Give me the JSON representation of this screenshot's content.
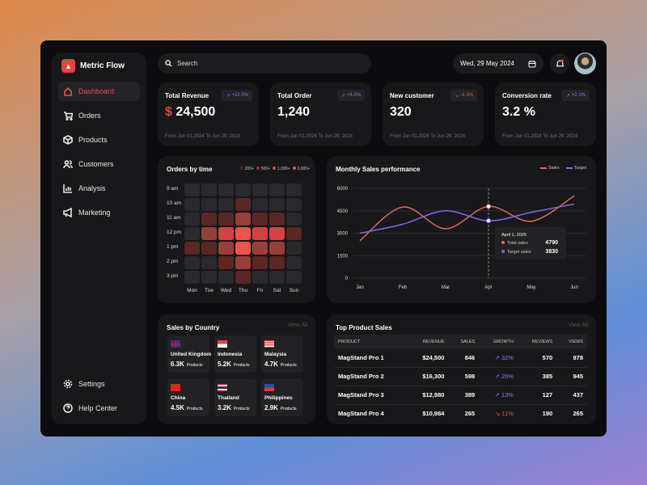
{
  "app": {
    "name": "Metric Flow"
  },
  "sidebar": {
    "items": [
      {
        "label": "Dashboard",
        "icon": "home-icon",
        "active": true
      },
      {
        "label": "Orders",
        "icon": "cart-icon"
      },
      {
        "label": "Products",
        "icon": "box-icon"
      },
      {
        "label": "Customers",
        "icon": "users-icon"
      },
      {
        "label": "Analysis",
        "icon": "bar-chart-icon"
      },
      {
        "label": "Marketing",
        "icon": "megaphone-icon"
      }
    ],
    "bottom": [
      {
        "label": "Settings",
        "icon": "gear-icon"
      },
      {
        "label": "Help Center",
        "icon": "help-icon"
      }
    ]
  },
  "header": {
    "search_placeholder": "Search",
    "date": "Wed, 29 May 2024"
  },
  "cards": [
    {
      "title": "Total Revenue",
      "currency": "$",
      "value": "24,500",
      "badge": "+12.5%",
      "trend": "up",
      "range": "From Jun 01,2024 To Jun 29, 2024"
    },
    {
      "title": "Total Order",
      "value": "1,240",
      "badge": "+8.2%",
      "trend": "up",
      "range": "From Jun 01,2024 To Jun 29, 2024"
    },
    {
      "title": "New customer",
      "value": "320",
      "badge": "-4.3%",
      "trend": "down",
      "range": "From Jun 01,2024 To Jun 29, 2024"
    },
    {
      "title": "Conversion rate",
      "value": "3.2 %",
      "badge": "+2.1%",
      "trend": "up",
      "range": "From Jun 01,2024 To Jun 29, 2024"
    }
  ],
  "colors": {
    "accent": "#e5453f",
    "up": "#8a7cf0",
    "down": "#e5534d",
    "sales": "#e06a62",
    "target": "#7b6cf0"
  },
  "chart_data": [
    {
      "type": "heatmap",
      "title": "Orders by time",
      "legend": [
        "200+",
        "500+",
        "1,000+",
        "2,000+"
      ],
      "rows": [
        "9 am",
        "10 am",
        "11 am",
        "12 pm",
        "1 pm",
        "2 pm",
        "3 pm"
      ],
      "columns": [
        "Mon",
        "Tue",
        "Wed",
        "Thu",
        "Fri",
        "Sat",
        "Sun"
      ],
      "levels": [
        [
          0,
          0,
          0,
          0,
          0,
          0,
          0
        ],
        [
          0,
          0,
          0,
          1,
          0,
          0,
          0
        ],
        [
          0,
          1,
          1,
          2,
          1,
          1,
          0
        ],
        [
          0,
          2,
          3,
          4,
          3,
          3,
          1
        ],
        [
          1,
          1,
          2,
          4,
          2,
          2,
          0
        ],
        [
          0,
          0,
          1,
          2,
          1,
          1,
          0
        ],
        [
          0,
          0,
          0,
          1,
          0,
          0,
          0
        ]
      ]
    },
    {
      "type": "line",
      "title": "Monthly Sales performance",
      "categories": [
        "Jan",
        "Feb",
        "Mar",
        "Apr",
        "May",
        "Jun"
      ],
      "yticks": [
        "0",
        "1500",
        "3000",
        "4500",
        "6000"
      ],
      "ylim": [
        0,
        6000
      ],
      "legend_position": "top-right",
      "grid": true,
      "series": [
        {
          "name": "Sales",
          "values": [
            2500,
            4750,
            3300,
            4790,
            3800,
            5500
          ]
        },
        {
          "name": "Target",
          "values": [
            3000,
            3600,
            4500,
            3830,
            4400,
            4950
          ]
        }
      ],
      "tooltip": {
        "title": "April 1, 2025",
        "rows": [
          {
            "label": "Total sales",
            "value": "4790"
          },
          {
            "label": "Target sales",
            "value": "3830"
          }
        ]
      }
    }
  ],
  "countries": {
    "title": "Sales by Country",
    "view_all": "View All",
    "unit": "Products",
    "items": [
      {
        "name": "United Kingdom",
        "value": "6.3K",
        "flag": "uk"
      },
      {
        "name": "Indonesia",
        "value": "5.2K",
        "flag": "id"
      },
      {
        "name": "Malaysia",
        "value": "4.7K",
        "flag": "my"
      },
      {
        "name": "China",
        "value": "4.5K",
        "flag": "cn"
      },
      {
        "name": "Thailand",
        "value": "3.2K",
        "flag": "th"
      },
      {
        "name": "Philippines",
        "value": "2.9K",
        "flag": "ph"
      }
    ]
  },
  "products": {
    "title": "Top Product Sales",
    "view_all": "View All",
    "columns": [
      "PRODUCT",
      "REVENUE",
      "SALES",
      "GROWTH",
      "REVIEWS",
      "VIEWS"
    ],
    "rows": [
      {
        "product": "MagStand Pro 1",
        "revenue": "$24,500",
        "sales": "846",
        "growth": "32%",
        "trend": "up",
        "reviews": "570",
        "views": "978"
      },
      {
        "product": "MagStand Pro 2",
        "revenue": "$16,300",
        "sales": "598",
        "growth": "26%",
        "trend": "up",
        "reviews": "385",
        "views": "945"
      },
      {
        "product": "MagStand Pro 3",
        "revenue": "$12,980",
        "sales": "389",
        "growth": "13%",
        "trend": "up",
        "reviews": "127",
        "views": "437"
      },
      {
        "product": "MagStand Pro 4",
        "revenue": "$10,984",
        "sales": "265",
        "growth": "11%",
        "trend": "down",
        "reviews": "190",
        "views": "265"
      }
    ]
  }
}
